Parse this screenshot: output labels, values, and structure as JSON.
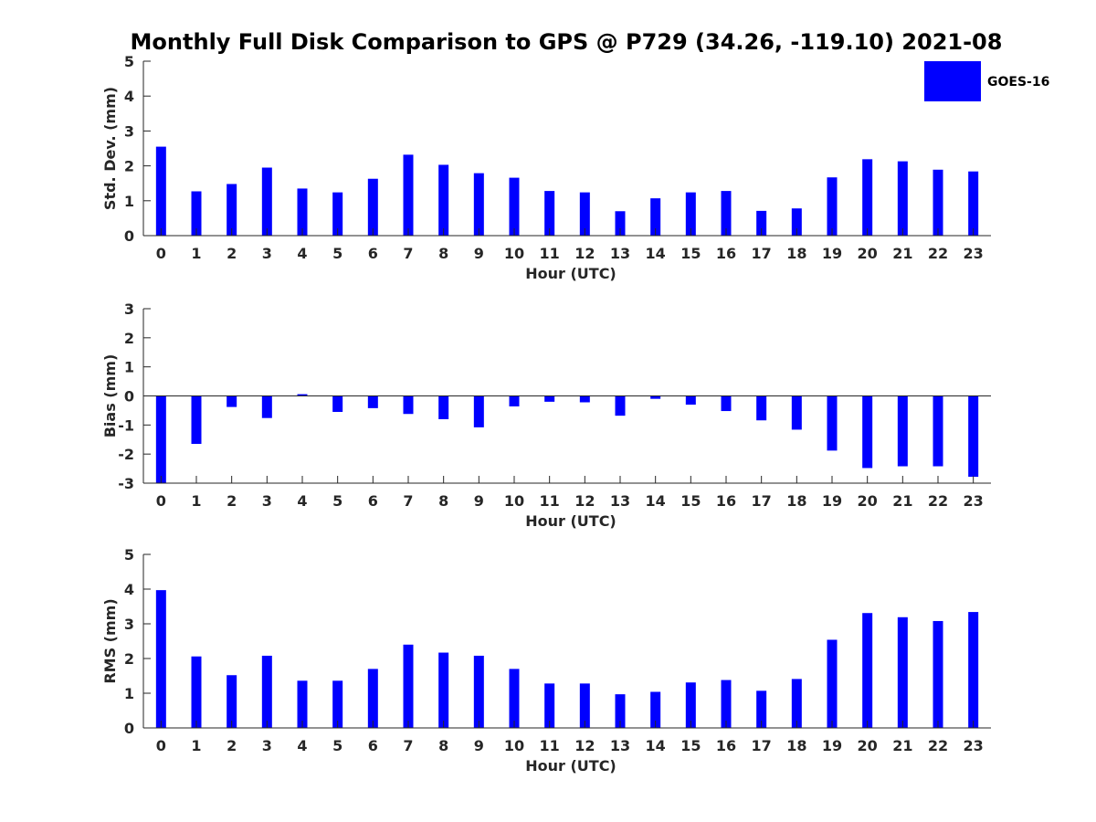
{
  "title": "Monthly Full Disk Comparison to GPS @ P729 (34.26, -119.10) 2021-08",
  "colors": {
    "bar": "#0000ff",
    "axis": "#262626"
  },
  "legend": {
    "label": "GOES-16",
    "placement": "top-right"
  },
  "chart_data": [
    {
      "type": "bar",
      "title": "",
      "xlabel": "Hour (UTC)",
      "ylabel": "Std. Dev. (mm)",
      "ylim": [
        0,
        5
      ],
      "yticks": [
        0,
        1,
        2,
        3,
        4,
        5
      ],
      "categories": [
        "0",
        "1",
        "2",
        "3",
        "4",
        "5",
        "6",
        "7",
        "8",
        "9",
        "10",
        "11",
        "12",
        "13",
        "14",
        "15",
        "16",
        "17",
        "18",
        "19",
        "20",
        "21",
        "22",
        "23"
      ],
      "series": [
        {
          "name": "GOES-16",
          "values": [
            2.55,
            1.27,
            1.48,
            1.95,
            1.35,
            1.24,
            1.63,
            2.32,
            2.03,
            1.79,
            1.66,
            1.28,
            1.24,
            0.7,
            1.07,
            1.24,
            1.28,
            0.71,
            0.78,
            1.67,
            2.19,
            2.13,
            1.89,
            1.84
          ]
        }
      ]
    },
    {
      "type": "bar",
      "title": "",
      "xlabel": "Hour (UTC)",
      "ylabel": "Bias (mm)",
      "ylim": [
        -3,
        3
      ],
      "yticks": [
        -3,
        -2,
        -1,
        0,
        1,
        2,
        3
      ],
      "categories": [
        "0",
        "1",
        "2",
        "3",
        "4",
        "5",
        "6",
        "7",
        "8",
        "9",
        "10",
        "11",
        "12",
        "13",
        "14",
        "15",
        "16",
        "17",
        "18",
        "19",
        "20",
        "21",
        "22",
        "23"
      ],
      "series": [
        {
          "name": "GOES-16",
          "values": [
            -3.0,
            -1.65,
            -0.38,
            -0.76,
            0.06,
            -0.55,
            -0.42,
            -0.62,
            -0.8,
            -1.08,
            -0.36,
            -0.2,
            -0.22,
            -0.68,
            -0.1,
            -0.3,
            -0.52,
            -0.84,
            -1.16,
            -1.88,
            -2.48,
            -2.42,
            -2.42,
            -2.78
          ]
        }
      ]
    },
    {
      "type": "bar",
      "title": "",
      "xlabel": "Hour (UTC)",
      "ylabel": "RMS (mm)",
      "ylim": [
        0,
        5
      ],
      "yticks": [
        0,
        1,
        2,
        3,
        4,
        5
      ],
      "categories": [
        "0",
        "1",
        "2",
        "3",
        "4",
        "5",
        "6",
        "7",
        "8",
        "9",
        "10",
        "11",
        "12",
        "13",
        "14",
        "15",
        "16",
        "17",
        "18",
        "19",
        "20",
        "21",
        "22",
        "23"
      ],
      "series": [
        {
          "name": "GOES-16",
          "values": [
            3.97,
            2.06,
            1.52,
            2.08,
            1.36,
            1.36,
            1.7,
            2.4,
            2.17,
            2.08,
            1.7,
            1.28,
            1.28,
            0.97,
            1.04,
            1.31,
            1.38,
            1.07,
            1.41,
            2.54,
            3.31,
            3.19,
            3.08,
            3.34
          ]
        }
      ]
    }
  ]
}
